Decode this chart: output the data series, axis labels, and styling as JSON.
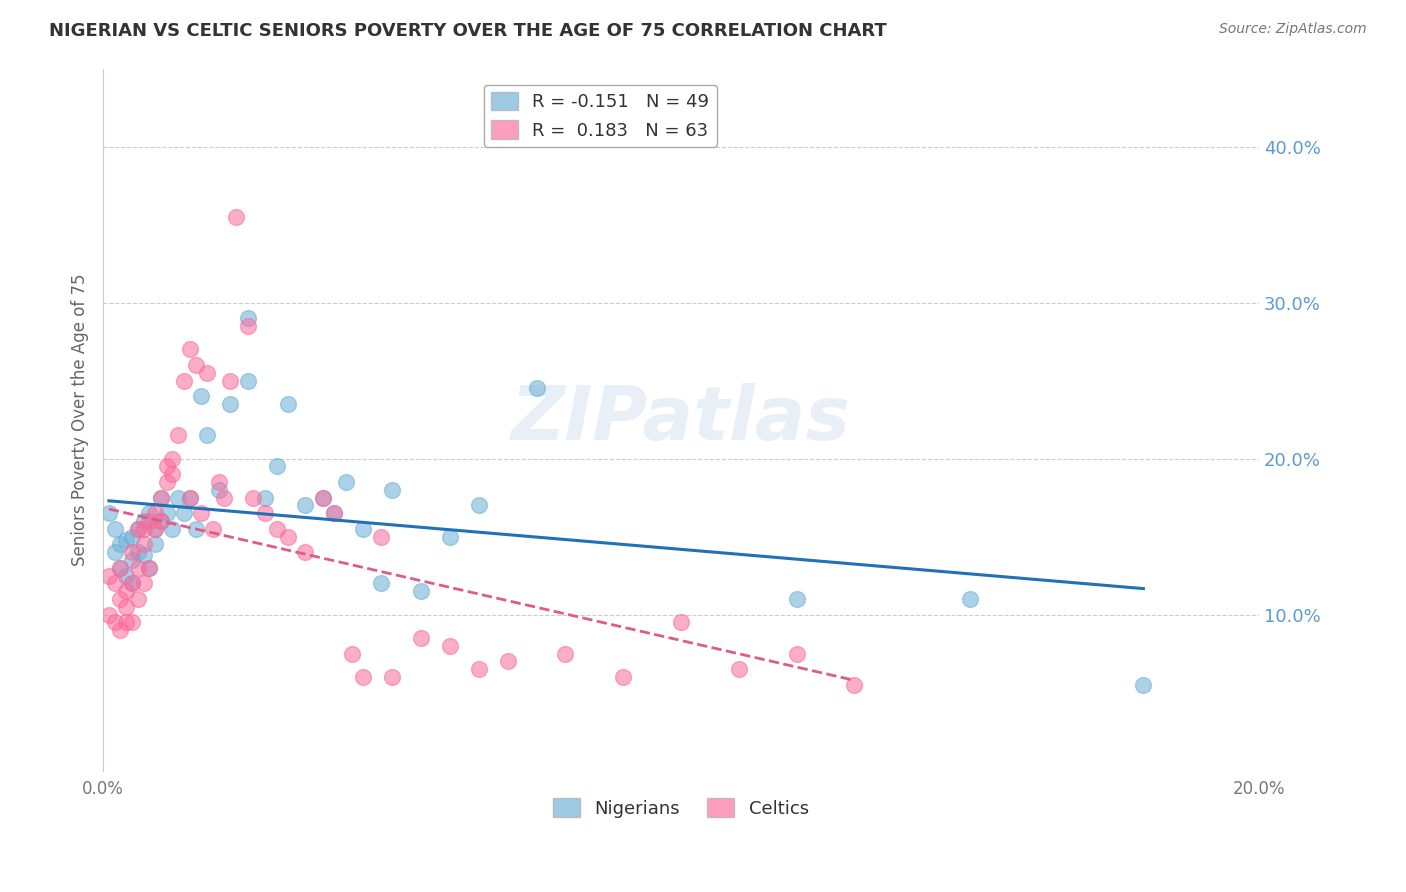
{
  "title": "NIGERIAN VS CELTIC SENIORS POVERTY OVER THE AGE OF 75 CORRELATION CHART",
  "source": "Source: ZipAtlas.com",
  "ylabel": "Seniors Poverty Over the Age of 75",
  "x_min": 0.0,
  "x_max": 0.2,
  "y_min": 0.0,
  "y_max": 0.45,
  "x_ticks": [
    0.0,
    0.05,
    0.1,
    0.15,
    0.2
  ],
  "x_tick_labels": [
    "0.0%",
    "",
    "",
    "",
    "20.0%"
  ],
  "y_ticks_right": [
    0.1,
    0.2,
    0.3,
    0.4
  ],
  "y_tick_labels_right": [
    "10.0%",
    "20.0%",
    "30.0%",
    "40.0%"
  ],
  "nigerians_color": "#6baed6",
  "celtics_color": "#fb6a9a",
  "trend_nigerian_color": "#2171b5",
  "trend_celtic_color": "#e05a8a",
  "background_color": "#ffffff",
  "grid_color": "#cccccc",
  "watermark": "ZIPatlas",
  "nigerian_x": [
    0.001,
    0.002,
    0.002,
    0.003,
    0.003,
    0.004,
    0.004,
    0.005,
    0.005,
    0.005,
    0.006,
    0.006,
    0.007,
    0.007,
    0.008,
    0.008,
    0.009,
    0.009,
    0.01,
    0.01,
    0.011,
    0.012,
    0.013,
    0.014,
    0.015,
    0.016,
    0.017,
    0.018,
    0.02,
    0.022,
    0.025,
    0.025,
    0.028,
    0.03,
    0.032,
    0.035,
    0.038,
    0.04,
    0.042,
    0.045,
    0.048,
    0.05,
    0.055,
    0.06,
    0.065,
    0.075,
    0.12,
    0.15,
    0.18
  ],
  "nigerian_y": [
    0.165,
    0.14,
    0.155,
    0.13,
    0.145,
    0.125,
    0.148,
    0.135,
    0.12,
    0.15,
    0.155,
    0.14,
    0.138,
    0.16,
    0.165,
    0.13,
    0.155,
    0.145,
    0.175,
    0.16,
    0.165,
    0.155,
    0.175,
    0.165,
    0.175,
    0.155,
    0.24,
    0.215,
    0.18,
    0.235,
    0.29,
    0.25,
    0.175,
    0.195,
    0.235,
    0.17,
    0.175,
    0.165,
    0.185,
    0.155,
    0.12,
    0.18,
    0.115,
    0.15,
    0.17,
    0.245,
    0.11,
    0.11,
    0.055
  ],
  "celtic_x": [
    0.001,
    0.001,
    0.002,
    0.002,
    0.003,
    0.003,
    0.003,
    0.004,
    0.004,
    0.004,
    0.005,
    0.005,
    0.005,
    0.006,
    0.006,
    0.006,
    0.007,
    0.007,
    0.007,
    0.008,
    0.008,
    0.009,
    0.009,
    0.01,
    0.01,
    0.011,
    0.011,
    0.012,
    0.012,
    0.013,
    0.014,
    0.015,
    0.015,
    0.016,
    0.017,
    0.018,
    0.019,
    0.02,
    0.021,
    0.022,
    0.023,
    0.025,
    0.026,
    0.028,
    0.03,
    0.032,
    0.035,
    0.038,
    0.04,
    0.043,
    0.045,
    0.048,
    0.05,
    0.055,
    0.06,
    0.065,
    0.07,
    0.08,
    0.09,
    0.1,
    0.11,
    0.12,
    0.13
  ],
  "celtic_y": [
    0.125,
    0.1,
    0.12,
    0.095,
    0.11,
    0.09,
    0.13,
    0.115,
    0.095,
    0.105,
    0.12,
    0.095,
    0.14,
    0.13,
    0.11,
    0.155,
    0.145,
    0.12,
    0.155,
    0.16,
    0.13,
    0.155,
    0.165,
    0.175,
    0.16,
    0.195,
    0.185,
    0.2,
    0.19,
    0.215,
    0.25,
    0.27,
    0.175,
    0.26,
    0.165,
    0.255,
    0.155,
    0.185,
    0.175,
    0.25,
    0.355,
    0.285,
    0.175,
    0.165,
    0.155,
    0.15,
    0.14,
    0.175,
    0.165,
    0.075,
    0.06,
    0.15,
    0.06,
    0.085,
    0.08,
    0.065,
    0.07,
    0.075,
    0.06,
    0.095,
    0.065,
    0.075,
    0.055
  ]
}
